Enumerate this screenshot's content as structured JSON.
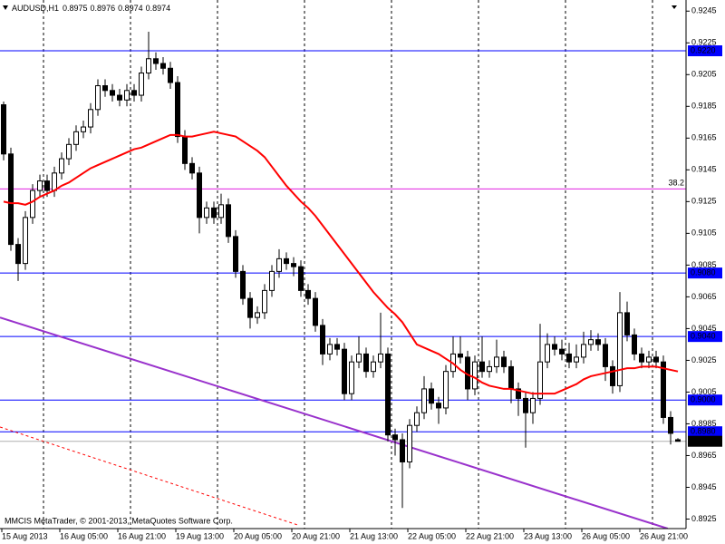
{
  "header": {
    "symbol": "AUDUSD,H1",
    "ohlc": [
      0.8975,
      0.8976,
      0.8974,
      0.8974
    ]
  },
  "copyright": "MMCIS MetaTrader, © 2001-2013, MetaQuotes Software Corp.",
  "chart_data": {
    "type": "candlestick",
    "categories": [
      "15 Aug 2013",
      null,
      null,
      null,
      null,
      null,
      null,
      null,
      "16 Aug 05:00",
      null,
      null,
      null,
      null,
      null,
      null,
      null,
      "16 Aug 21:00",
      null,
      null,
      null,
      null,
      null,
      null,
      null,
      "19 Aug 13:00",
      null,
      null,
      null,
      null,
      null,
      null,
      null,
      "20 Aug 05:00",
      null,
      null,
      null,
      null,
      null,
      null,
      null,
      "20 Aug 21:00",
      null,
      null,
      null,
      null,
      null,
      null,
      null,
      "21 Aug 13:00",
      null,
      null,
      null,
      null,
      null,
      null,
      null,
      "22 Aug 05:00",
      null,
      null,
      null,
      null,
      null,
      null,
      null,
      "22 Aug 21:00",
      null,
      null,
      null,
      null,
      null,
      null,
      null,
      "23 Aug 13:00",
      null,
      null,
      null,
      null,
      null,
      null,
      null,
      "26 Aug 05:00",
      null,
      null,
      null,
      null,
      null,
      null,
      null,
      "26 Aug 21:00",
      null,
      null,
      null,
      null,
      null
    ],
    "open": [
      0.9186,
      0.9155,
      0.9098,
      0.9086,
      0.9115,
      0.9132,
      0.9138,
      0.9132,
      0.9143,
      0.9152,
      0.9161,
      0.9169,
      0.9172,
      0.9183,
      0.9198,
      0.9195,
      0.9192,
      0.9189,
      0.9195,
      0.9192,
      0.9206,
      0.9215,
      0.9212,
      0.9209,
      0.92,
      0.9166,
      0.9149,
      0.9143,
      0.9115,
      0.9121,
      0.9115,
      0.9123,
      0.9103,
      0.9081,
      0.9064,
      0.9052,
      0.9055,
      0.9069,
      0.9081,
      0.9089,
      0.9086,
      0.9084,
      0.9069,
      0.9064,
      0.9047,
      0.9029,
      0.9035,
      0.9032,
      0.9004,
      0.9024,
      0.9029,
      0.9018,
      0.9024,
      0.9029,
      0.8978,
      0.8975,
      0.8961,
      0.8984,
      0.8992,
      0.9007,
      0.8998,
      0.8995,
      0.9018,
      0.9029,
      0.9027,
      0.9007,
      0.9024,
      0.9018,
      0.9021,
      0.9027,
      0.9021,
      0.9007,
      0.9001,
      0.8992,
      0.9001,
      0.9024,
      0.9035,
      0.9032,
      0.9029,
      0.9024,
      0.9027,
      0.9035,
      0.9038,
      0.9035,
      0.9021,
      0.9009,
      0.9055,
      0.9041,
      0.9029,
      0.9024,
      0.9027,
      0.9024,
      0.8989,
      0.8975
    ],
    "high": [
      0.9188,
      0.9159,
      0.9102,
      0.9119,
      0.9136,
      0.9142,
      0.9142,
      0.9147,
      0.9156,
      0.9165,
      0.9173,
      0.9176,
      0.9187,
      0.9202,
      0.9202,
      0.9199,
      0.9196,
      0.9199,
      0.9199,
      0.921,
      0.9232,
      0.9219,
      0.9216,
      0.9213,
      0.9204,
      0.917,
      0.9153,
      0.9147,
      0.9125,
      0.9125,
      0.913,
      0.9127,
      0.9107,
      0.9085,
      0.9068,
      0.9059,
      0.9073,
      0.9085,
      0.9095,
      0.9093,
      0.909,
      0.9088,
      0.9073,
      0.9068,
      0.9051,
      0.9039,
      0.9039,
      0.9036,
      0.9028,
      0.904,
      0.9033,
      0.9028,
      0.9055,
      0.9033,
      0.8982,
      0.8979,
      0.8988,
      0.8996,
      0.9015,
      0.9011,
      0.9002,
      0.9022,
      0.904,
      0.904,
      0.9031,
      0.9028,
      0.904,
      0.9025,
      0.9038,
      0.9031,
      0.9025,
      0.9011,
      0.9005,
      0.9005,
      0.9048,
      0.9042,
      0.904,
      0.9038,
      0.9036,
      0.9035,
      0.9043,
      0.9044,
      0.9042,
      0.9039,
      0.9025,
      0.9068,
      0.9062,
      0.9045,
      0.9033,
      0.9031,
      0.9031,
      0.9028,
      0.8993,
      0.8976
    ],
    "low": [
      0.9151,
      0.9094,
      0.9075,
      0.9082,
      0.9111,
      0.9128,
      0.9128,
      0.9128,
      0.9139,
      0.9148,
      0.9157,
      0.9165,
      0.9168,
      0.9179,
      0.9191,
      0.9188,
      0.9185,
      0.9185,
      0.9188,
      0.9188,
      0.9202,
      0.9208,
      0.9205,
      0.9196,
      0.9162,
      0.9145,
      0.9139,
      0.9105,
      0.9111,
      0.9111,
      0.9111,
      0.9099,
      0.9077,
      0.906,
      0.9045,
      0.9048,
      0.9051,
      0.9065,
      0.9077,
      0.9082,
      0.9078,
      0.9065,
      0.906,
      0.9043,
      0.9022,
      0.9025,
      0.9028,
      0.9,
      0.9,
      0.902,
      0.9014,
      0.9014,
      0.902,
      0.8974,
      0.8965,
      0.8932,
      0.8957,
      0.898,
      0.8988,
      0.8994,
      0.8985,
      0.8991,
      0.9014,
      0.9023,
      0.9,
      0.9003,
      0.9014,
      0.9014,
      0.9017,
      0.9017,
      0.8998,
      0.899,
      0.897,
      0.8985,
      0.8997,
      0.902,
      0.9028,
      0.9025,
      0.902,
      0.902,
      0.9023,
      0.9031,
      0.9031,
      0.9012,
      0.9004,
      0.9005,
      0.9037,
      0.9025,
      0.902,
      0.902,
      0.902,
      0.8985,
      0.8972,
      0.8974
    ],
    "close": [
      0.9155,
      0.9098,
      0.9086,
      0.9115,
      0.9132,
      0.9138,
      0.9132,
      0.9143,
      0.9152,
      0.9161,
      0.9169,
      0.9172,
      0.9183,
      0.9198,
      0.9195,
      0.9192,
      0.9189,
      0.9195,
      0.9192,
      0.9206,
      0.9215,
      0.9212,
      0.9209,
      0.92,
      0.9166,
      0.9149,
      0.9143,
      0.9115,
      0.9121,
      0.9115,
      0.9123,
      0.9103,
      0.9081,
      0.9064,
      0.9052,
      0.9055,
      0.9069,
      0.9081,
      0.9089,
      0.9086,
      0.9084,
      0.9069,
      0.9064,
      0.9047,
      0.9029,
      0.9035,
      0.9032,
      0.9004,
      0.9024,
      0.9029,
      0.9018,
      0.9024,
      0.9029,
      0.8978,
      0.8975,
      0.8961,
      0.8984,
      0.8992,
      0.9007,
      0.8998,
      0.8995,
      0.9018,
      0.9029,
      0.9027,
      0.9007,
      0.9024,
      0.9018,
      0.9021,
      0.9027,
      0.9021,
      0.9007,
      0.9001,
      0.8992,
      0.9001,
      0.9024,
      0.9035,
      0.9032,
      0.9029,
      0.9024,
      0.9027,
      0.9035,
      0.9038,
      0.9035,
      0.9021,
      0.9009,
      0.9055,
      0.9041,
      0.9029,
      0.9024,
      0.9027,
      0.9024,
      0.8989,
      0.8979,
      0.8974
    ],
    "bull_color": "#ffffff",
    "bear_color": "#000000",
    "wick_color": "#000000",
    "moving_average": {
      "color": "#ff0000",
      "values": [
        0.9125,
        0.9124,
        0.9124,
        0.9123,
        0.9125,
        0.9128,
        0.913,
        0.9132,
        0.9135,
        0.9137,
        0.914,
        0.9143,
        0.9146,
        0.9148,
        0.915,
        0.9152,
        0.9154,
        0.9156,
        0.9158,
        0.9159,
        0.9161,
        0.9163,
        0.9165,
        0.9167,
        0.9167,
        0.9166,
        0.9166,
        0.9167,
        0.9168,
        0.9169,
        0.9168,
        0.9167,
        0.9166,
        0.9163,
        0.916,
        0.9157,
        0.9153,
        0.9147,
        0.9141,
        0.9135,
        0.913,
        0.9125,
        0.9121,
        0.9116,
        0.911,
        0.9104,
        0.9098,
        0.9092,
        0.9086,
        0.908,
        0.9074,
        0.9068,
        0.9063,
        0.9058,
        0.9054,
        0.9049,
        0.9042,
        0.9035,
        0.9033,
        0.9031,
        0.9029,
        0.9026,
        0.9023,
        0.9019,
        0.9016,
        0.9014,
        0.9011,
        0.9009,
        0.9008,
        0.9007,
        0.9007,
        0.9006,
        0.9005,
        0.9004,
        0.9004,
        0.9004,
        0.9004,
        0.9006,
        0.9008,
        0.901,
        0.9013,
        0.9015,
        0.9016,
        0.9017,
        0.9018,
        0.9019,
        0.902,
        0.902,
        0.9021,
        0.9021,
        0.9021,
        0.902,
        0.9019,
        0.9018
      ]
    },
    "trendlines": [
      {
        "color": "#9932cc",
        "dashed": false,
        "x": [
          -0.5,
          91.6
        ],
        "values": [
          0.9052,
          0.8919
        ]
      },
      {
        "color": "#ff0000",
        "dashed": true,
        "x": [
          -0.5,
          40.75
        ],
        "values": [
          0.8983,
          0.8921
        ]
      }
    ],
    "levels": [
      {
        "value": 0.922,
        "label": "0.9220",
        "color": "#0000ff",
        "label_position": "axis"
      },
      {
        "value": 0.9133,
        "label": "38.2",
        "color": "#e020e0",
        "label_position": "chart"
      },
      {
        "value": 0.908,
        "label": "0.9080",
        "color": "#0000ff",
        "label_position": "axis"
      },
      {
        "value": 0.904,
        "label": "0.9040",
        "color": "#0000ff",
        "label_position": "axis"
      },
      {
        "value": 0.9,
        "label": "0.9000",
        "color": "#0000ff",
        "label_position": "axis"
      },
      {
        "value": 0.898,
        "label": "0.8980",
        "color": "#0000ff",
        "label_position": "axis"
      }
    ],
    "current_price": 0.8974,
    "ylim": [
      0.8919,
      0.9252
    ],
    "yticks": [
      0.9245,
      0.9225,
      0.9205,
      0.9185,
      0.9165,
      0.9145,
      0.9125,
      0.9105,
      0.9085,
      0.9065,
      0.9045,
      0.9025,
      0.9005,
      0.8985,
      0.8965,
      0.8945,
      0.8925
    ]
  }
}
